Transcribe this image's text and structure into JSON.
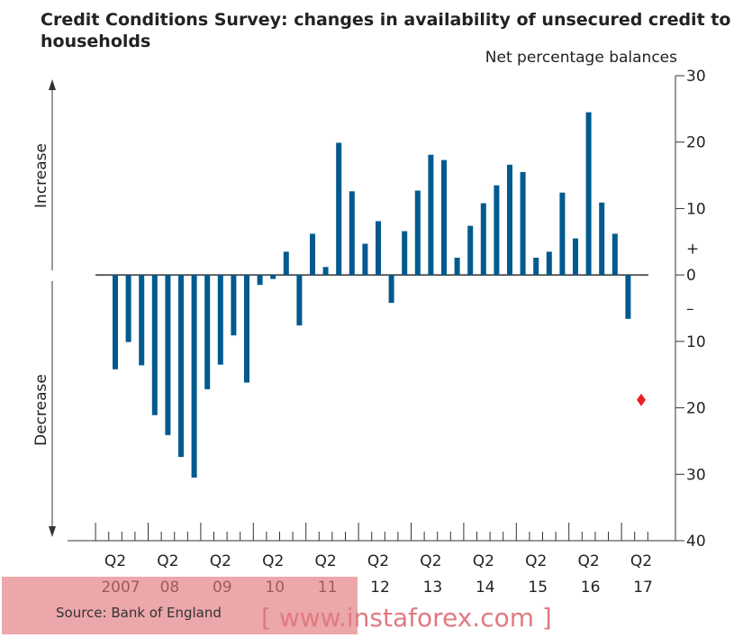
{
  "chart_data": {
    "type": "bar",
    "title": "Credit Conditions Survey:  changes in availability of unsecured credit to households",
    "ylabel": "Net percentage balances",
    "ylim": [
      -40,
      30
    ],
    "yticks": [
      30,
      20,
      10,
      0,
      -10,
      -20,
      -30,
      -40
    ],
    "ytick_labels": [
      "30",
      "20",
      "10",
      "0",
      "10",
      "20",
      "30",
      "40"
    ],
    "sign_labels": {
      "plus": "+",
      "minus": "–"
    },
    "side_labels": {
      "increase": "Increase",
      "decrease": "Decrease"
    },
    "x_quarter_labels": [
      "Q2",
      "Q2",
      "Q2",
      "Q2",
      "Q2",
      "Q2",
      "Q2",
      "Q2",
      "Q2",
      "Q2",
      "Q2"
    ],
    "x_year_labels": [
      "2007",
      "08",
      "09",
      "10",
      "11",
      "12",
      "13",
      "14",
      "15",
      "16",
      "17"
    ],
    "start": "2007 Q2",
    "values": [
      -14.2,
      -10.1,
      -13.6,
      -21.1,
      -24.1,
      -27.4,
      -30.5,
      -17.2,
      -13.5,
      -9.1,
      -16.2,
      -1.5,
      -0.6,
      3.5,
      -7.6,
      6.2,
      1.2,
      19.9,
      12.6,
      4.7,
      8.1,
      -4.2,
      6.6,
      12.7,
      18.1,
      17.3,
      2.6,
      7.4,
      10.8,
      13.5,
      16.6,
      15.5,
      2.6,
      3.5,
      12.4,
      5.5,
      24.5,
      10.9,
      6.2,
      -6.6
    ],
    "expected": {
      "quarter": "2017 Q2",
      "value": -18.8,
      "color": "#e8202a"
    },
    "bar_color": "#005a8f",
    "source": "Source: Bank of England"
  },
  "watermark": "[ www.instaforex.com ]"
}
